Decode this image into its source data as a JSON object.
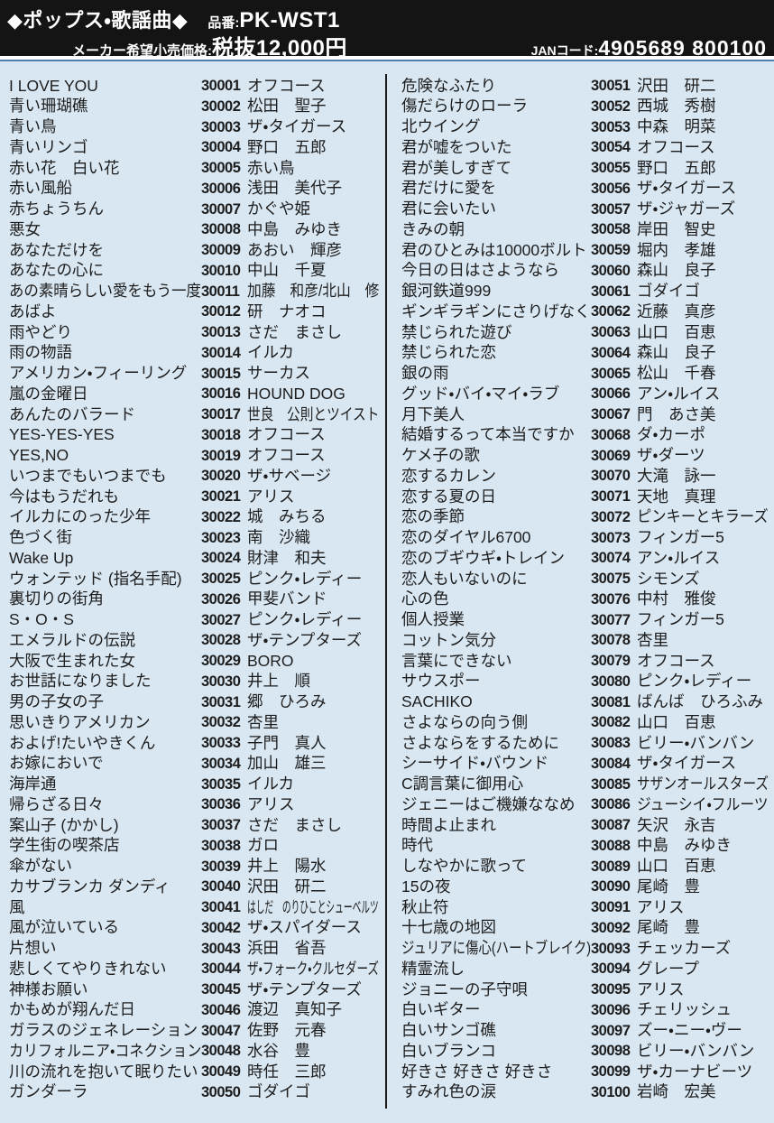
{
  "header": {
    "category": "◆ポップス・歌謡曲◆",
    "product_label": "品番:",
    "product_code": "PK-WST1",
    "price_label": "メーカー希望小売価格:",
    "price_value": "税抜12,000円",
    "jan_label": "JANコード:",
    "jan_value": "4905689 800100"
  },
  "songs": [
    {
      "no": "30001",
      "title": "I LOVE YOU",
      "artist": "オフコース"
    },
    {
      "no": "30002",
      "title": "青い珊瑚礁",
      "artist": "松田　聖子"
    },
    {
      "no": "30003",
      "title": "青い鳥",
      "artist": "ザ・タイガース"
    },
    {
      "no": "30004",
      "title": "青いリンゴ",
      "artist": "野口　五郎"
    },
    {
      "no": "30005",
      "title": "赤い花　白い花",
      "artist": "赤い鳥"
    },
    {
      "no": "30006",
      "title": "赤い風船",
      "artist": "浅田　美代子"
    },
    {
      "no": "30007",
      "title": "赤ちょうちん",
      "artist": "かぐや姫"
    },
    {
      "no": "30008",
      "title": "悪女",
      "artist": "中島　みゆき"
    },
    {
      "no": "30009",
      "title": "あなただけを",
      "artist": "あおい　輝彦"
    },
    {
      "no": "30010",
      "title": "あなたの心に",
      "artist": "中山　千夏"
    },
    {
      "no": "30011",
      "title": "あの素晴らしい愛をもう一度",
      "artist": "加藤　和彦/北山　修"
    },
    {
      "no": "30012",
      "title": "あばよ",
      "artist": "研　ナオコ"
    },
    {
      "no": "30013",
      "title": "雨やどり",
      "artist": "さだ　まさし"
    },
    {
      "no": "30014",
      "title": "雨の物語",
      "artist": "イルカ"
    },
    {
      "no": "30015",
      "title": "アメリカン・フィーリング",
      "artist": "サーカス"
    },
    {
      "no": "30016",
      "title": "嵐の金曜日",
      "artist": "HOUND DOG"
    },
    {
      "no": "30017",
      "title": "あんたのバラード",
      "artist": "世良　公則とツイスト"
    },
    {
      "no": "30018",
      "title": "YES-YES-YES",
      "artist": "オフコース"
    },
    {
      "no": "30019",
      "title": "YES,NO",
      "artist": "オフコース"
    },
    {
      "no": "30020",
      "title": "いつまでもいつまでも",
      "artist": "ザ・サベージ"
    },
    {
      "no": "30021",
      "title": "今はもうだれも",
      "artist": "アリス"
    },
    {
      "no": "30022",
      "title": "イルカにのった少年",
      "artist": "城　みちる"
    },
    {
      "no": "30023",
      "title": "色づく街",
      "artist": "南　沙織"
    },
    {
      "no": "30024",
      "title": "Wake Up",
      "artist": "財津　和夫"
    },
    {
      "no": "30025",
      "title": "ウォンテッド (指名手配)",
      "artist": "ピンク・レディー"
    },
    {
      "no": "30026",
      "title": "裏切りの街角",
      "artist": "甲斐バンド"
    },
    {
      "no": "30027",
      "title": "S・O・S",
      "artist": "ピンク・レディー"
    },
    {
      "no": "30028",
      "title": "エメラルドの伝説",
      "artist": "ザ・テンプターズ"
    },
    {
      "no": "30029",
      "title": "大阪で生まれた女",
      "artist": "BORO"
    },
    {
      "no": "30030",
      "title": "お世話になりました",
      "artist": "井上　順"
    },
    {
      "no": "30031",
      "title": "男の子女の子",
      "artist": "郷　ひろみ"
    },
    {
      "no": "30032",
      "title": "思いきりアメリカン",
      "artist": "杏里"
    },
    {
      "no": "30033",
      "title": "およげ!たいやきくん",
      "artist": "子門　真人"
    },
    {
      "no": "30034",
      "title": "お嫁においで",
      "artist": "加山　雄三"
    },
    {
      "no": "30035",
      "title": "海岸通",
      "artist": "イルカ"
    },
    {
      "no": "30036",
      "title": "帰らざる日々",
      "artist": "アリス"
    },
    {
      "no": "30037",
      "title": "案山子 (かかし)",
      "artist": "さだ　まさし"
    },
    {
      "no": "30038",
      "title": "学生街の喫茶店",
      "artist": "ガロ"
    },
    {
      "no": "30039",
      "title": "傘がない",
      "artist": "井上　陽水"
    },
    {
      "no": "30040",
      "title": "カサブランカ ダンディ",
      "artist": "沢田　研二"
    },
    {
      "no": "30041",
      "title": "風",
      "artist": "はしだ　のりひことシューベルツ"
    },
    {
      "no": "30042",
      "title": "風が泣いている",
      "artist": "ザ・スパイダース"
    },
    {
      "no": "30043",
      "title": "片想い",
      "artist": "浜田　省吾"
    },
    {
      "no": "30044",
      "title": "悲しくてやりきれない",
      "artist": "ザ・フォーク・クルセダーズ"
    },
    {
      "no": "30045",
      "title": "神様お願い",
      "artist": "ザ・テンプターズ"
    },
    {
      "no": "30046",
      "title": "かもめが翔んだ日",
      "artist": "渡辺　真知子"
    },
    {
      "no": "30047",
      "title": "ガラスのジェネレーション",
      "artist": "佐野　元春"
    },
    {
      "no": "30048",
      "title": "カリフォルニア・コネクション",
      "artist": "水谷　豊"
    },
    {
      "no": "30049",
      "title": "川の流れを抱いて眠りたい",
      "artist": "時任　三郎"
    },
    {
      "no": "30050",
      "title": "ガンダーラ",
      "artist": "ゴダイゴ"
    },
    {
      "no": "30051",
      "title": "危険なふたり",
      "artist": "沢田　研二"
    },
    {
      "no": "30052",
      "title": "傷だらけのローラ",
      "artist": "西城　秀樹"
    },
    {
      "no": "30053",
      "title": "北ウイング",
      "artist": "中森　明菜"
    },
    {
      "no": "30054",
      "title": "君が嘘をついた",
      "artist": "オフコース"
    },
    {
      "no": "30055",
      "title": "君が美しすぎて",
      "artist": "野口　五郎"
    },
    {
      "no": "30056",
      "title": "君だけに愛を",
      "artist": "ザ・タイガース"
    },
    {
      "no": "30057",
      "title": "君に会いたい",
      "artist": "ザ・ジャガーズ"
    },
    {
      "no": "30058",
      "title": "きみの朝",
      "artist": "岸田　智史"
    },
    {
      "no": "30059",
      "title": "君のひとみは10000ボルト",
      "artist": "堀内　孝雄"
    },
    {
      "no": "30060",
      "title": "今日の日はさようなら",
      "artist": "森山　良子"
    },
    {
      "no": "30061",
      "title": "銀河鉄道999",
      "artist": "ゴダイゴ"
    },
    {
      "no": "30062",
      "title": "ギンギラギンにさりげなく",
      "artist": "近藤　真彦"
    },
    {
      "no": "30063",
      "title": "禁じられた遊び",
      "artist": "山口　百恵"
    },
    {
      "no": "30064",
      "title": "禁じられた恋",
      "artist": "森山　良子"
    },
    {
      "no": "30065",
      "title": "銀の雨",
      "artist": "松山　千春"
    },
    {
      "no": "30066",
      "title": "グッド・バイ・マイ・ラブ",
      "artist": "アン・ルイス"
    },
    {
      "no": "30067",
      "title": "月下美人",
      "artist": "門　あさ美"
    },
    {
      "no": "30068",
      "title": "結婚するって本当ですか",
      "artist": "ダ・カーポ"
    },
    {
      "no": "30069",
      "title": "ケメ子の歌",
      "artist": "ザ・ダーツ"
    },
    {
      "no": "30070",
      "title": "恋するカレン",
      "artist": "大滝　詠一"
    },
    {
      "no": "30071",
      "title": "恋する夏の日",
      "artist": "天地　真理"
    },
    {
      "no": "30072",
      "title": "恋の季節",
      "artist": "ピンキーとキラーズ"
    },
    {
      "no": "30073",
      "title": "恋のダイヤル6700",
      "artist": "フィンガー5"
    },
    {
      "no": "30074",
      "title": "恋のブギウギ・トレイン",
      "artist": "アン・ルイス"
    },
    {
      "no": "30075",
      "title": "恋人もいないのに",
      "artist": "シモンズ"
    },
    {
      "no": "30076",
      "title": "心の色",
      "artist": "中村　雅俊"
    },
    {
      "no": "30077",
      "title": "個人授業",
      "artist": "フィンガー5"
    },
    {
      "no": "30078",
      "title": "コットン気分",
      "artist": "杏里"
    },
    {
      "no": "30079",
      "title": "言葉にできない",
      "artist": "オフコース"
    },
    {
      "no": "30080",
      "title": "サウスポー",
      "artist": "ピンク・レディー"
    },
    {
      "no": "30081",
      "title": "SACHIKO",
      "artist": "ばんば　ひろふみ"
    },
    {
      "no": "30082",
      "title": "さよならの向う側",
      "artist": "山口　百恵"
    },
    {
      "no": "30083",
      "title": "さよならをするために",
      "artist": "ビリー・バンバン"
    },
    {
      "no": "30084",
      "title": "シーサイド・バウンド",
      "artist": "ザ・タイガース"
    },
    {
      "no": "30085",
      "title": "C調言葉に御用心",
      "artist": "サザンオールスターズ"
    },
    {
      "no": "30086",
      "title": "ジェニーはご機嫌ななめ",
      "artist": "ジューシイ・フルーツ"
    },
    {
      "no": "30087",
      "title": "時間よ止まれ",
      "artist": "矢沢　永吉"
    },
    {
      "no": "30088",
      "title": "時代",
      "artist": "中島　みゆき"
    },
    {
      "no": "30089",
      "title": "しなやかに歌って",
      "artist": "山口　百恵"
    },
    {
      "no": "30090",
      "title": "15の夜",
      "artist": "尾崎　豊"
    },
    {
      "no": "30091",
      "title": "秋止符",
      "artist": "アリス"
    },
    {
      "no": "30092",
      "title": "十七歳の地図",
      "artist": "尾崎　豊"
    },
    {
      "no": "30093",
      "title": "ジュリアに傷心(ハートブレイク)",
      "artist": "チェッカーズ"
    },
    {
      "no": "30094",
      "title": "精霊流し",
      "artist": "グレープ"
    },
    {
      "no": "30095",
      "title": "ジョニーの子守唄",
      "artist": "アリス"
    },
    {
      "no": "30096",
      "title": "白いギター",
      "artist": "チェリッシュ"
    },
    {
      "no": "30097",
      "title": "白いサンゴ礁",
      "artist": "ズー・ニー・ヴー"
    },
    {
      "no": "30098",
      "title": "白いブランコ",
      "artist": "ビリー・バンバン"
    },
    {
      "no": "30099",
      "title": "好きさ 好きさ 好きさ",
      "artist": "ザ・カーナビーツ"
    },
    {
      "no": "30100",
      "title": "すみれ色の涙",
      "artist": "岩崎　宏美"
    }
  ]
}
